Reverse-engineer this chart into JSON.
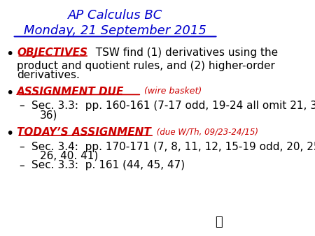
{
  "bg_color": "#ffffff",
  "title_line1": "AP Calculus BC",
  "title_line2": "Monday, 21 September 2015",
  "title_color": "#0000cd",
  "bullet_color": "#000000",
  "objectives_label": "OBJECTIVES",
  "objectives_label_color": "#cc0000",
  "objectives_text_color": "#000000",
  "assignment_due_label": "ASSIGNMENT DUE",
  "assignment_due_sub": " (wire basket)",
  "assignment_due_color": "#cc0000",
  "todays_label": "TODAY’S ASSIGNMENT",
  "todays_sub": " (due W/Th, 09/23-24/15)",
  "todays_color": "#cc0000",
  "item_color": "#000000",
  "dash": "–"
}
